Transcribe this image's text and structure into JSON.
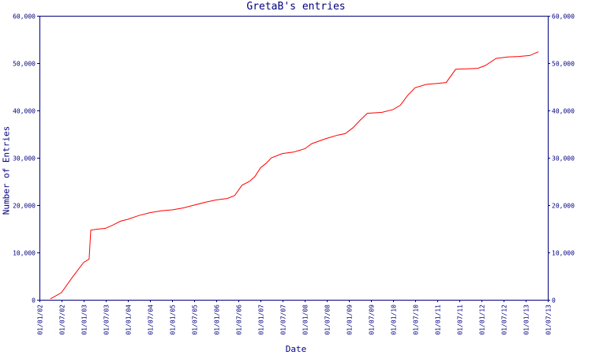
{
  "chart_data": {
    "type": "line",
    "title": "GretaB's entries",
    "xlabel": "Date",
    "ylabel": "Number of Entries",
    "x_ticks": [
      "01/01/02",
      "01/07/02",
      "01/01/03",
      "01/07/03",
      "01/01/04",
      "01/07/04",
      "01/01/05",
      "01/07/05",
      "01/01/06",
      "01/07/06",
      "01/01/07",
      "01/07/07",
      "01/01/08",
      "01/07/08",
      "01/01/09",
      "01/07/09",
      "01/01/10",
      "01/07/10",
      "01/01/11",
      "01/07/11",
      "01/01/12",
      "01/07/12",
      "01/01/13",
      "01/07/13"
    ],
    "y_ticks": [
      "0",
      "10,000",
      "20,000",
      "30,000",
      "40,000",
      "50,000",
      "60,000"
    ],
    "ylim": [
      0,
      60000
    ],
    "xlim": [
      "2002-01-01",
      "2013-07-01"
    ],
    "grid": false,
    "line_color": "#ff0000",
    "axis_color": "#000080",
    "series": [
      {
        "values": [
          [
            "2002-04-01",
            200
          ],
          [
            "2002-07-01",
            1500
          ],
          [
            "2002-10-01",
            4800
          ],
          [
            "2003-01-01",
            7900
          ],
          [
            "2003-02-15",
            8600
          ],
          [
            "2003-03-01",
            14700
          ],
          [
            "2003-04-15",
            14900
          ],
          [
            "2003-07-01",
            15100
          ],
          [
            "2003-09-01",
            15800
          ],
          [
            "2003-11-01",
            16600
          ],
          [
            "2004-01-01",
            17000
          ],
          [
            "2004-04-01",
            17800
          ],
          [
            "2004-07-01",
            18400
          ],
          [
            "2004-10-01",
            18800
          ],
          [
            "2005-01-01",
            19000
          ],
          [
            "2005-04-01",
            19400
          ],
          [
            "2005-07-01",
            20000
          ],
          [
            "2005-10-01",
            20600
          ],
          [
            "2006-01-01",
            21100
          ],
          [
            "2006-04-01",
            21400
          ],
          [
            "2006-06-01",
            22000
          ],
          [
            "2006-08-01",
            24200
          ],
          [
            "2006-10-01",
            25000
          ],
          [
            "2006-11-15",
            26000
          ],
          [
            "2007-01-01",
            27900
          ],
          [
            "2007-02-15",
            28800
          ],
          [
            "2007-04-01",
            30000
          ],
          [
            "2007-07-01",
            30900
          ],
          [
            "2007-10-01",
            31200
          ],
          [
            "2008-01-01",
            31900
          ],
          [
            "2008-03-01",
            33000
          ],
          [
            "2008-07-01",
            34100
          ],
          [
            "2008-10-01",
            34800
          ],
          [
            "2008-12-01",
            35100
          ],
          [
            "2009-02-01",
            36300
          ],
          [
            "2009-04-01",
            37900
          ],
          [
            "2009-06-01",
            39400
          ],
          [
            "2009-10-01",
            39600
          ],
          [
            "2010-01-01",
            40200
          ],
          [
            "2010-03-01",
            41100
          ],
          [
            "2010-05-01",
            43200
          ],
          [
            "2010-07-01",
            44800
          ],
          [
            "2010-10-01",
            45500
          ],
          [
            "2011-01-01",
            45700
          ],
          [
            "2011-03-15",
            45900
          ],
          [
            "2011-06-01",
            48700
          ],
          [
            "2011-09-01",
            48800
          ],
          [
            "2011-12-01",
            48900
          ],
          [
            "2012-02-01",
            49500
          ],
          [
            "2012-05-01",
            51000
          ],
          [
            "2012-08-01",
            51300
          ],
          [
            "2012-11-01",
            51400
          ],
          [
            "2013-02-01",
            51600
          ],
          [
            "2013-04-15",
            52400
          ]
        ]
      }
    ]
  }
}
